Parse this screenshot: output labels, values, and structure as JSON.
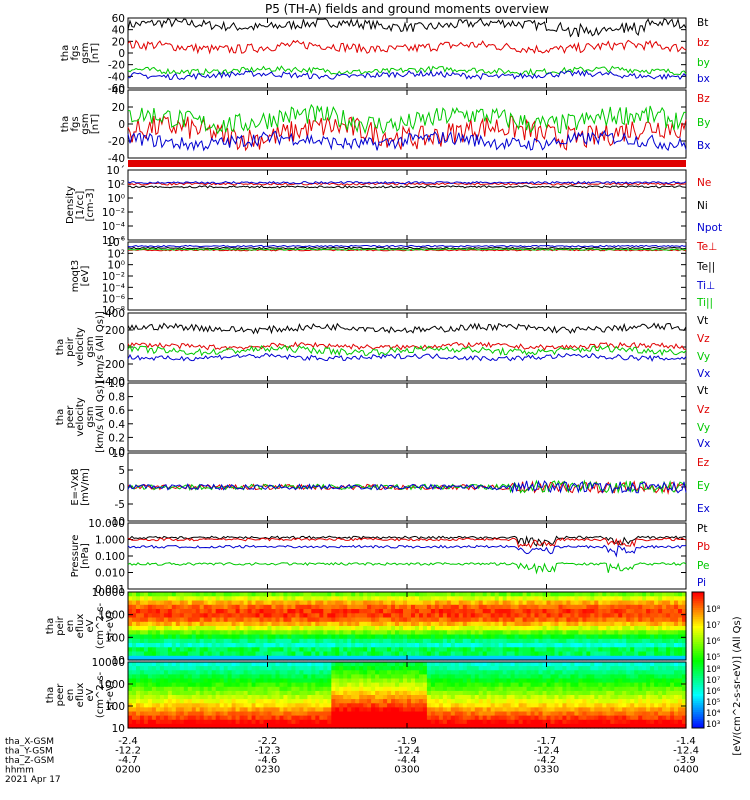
{
  "title": "P5 (TH-A) fields and ground moments overview",
  "chart_data": {
    "type": "line",
    "x_ticks": [
      "0200",
      "0230",
      "0300",
      "0330",
      "0400"
    ],
    "ephemeris": {
      "labels": [
        "tha_X-GSM",
        "tha_Y-GSM",
        "tha_Z-GSM",
        "hhmm",
        "2021 Apr 17"
      ],
      "rows": [
        [
          "-2.4",
          "-2.2",
          "-1.9",
          "-1.7",
          "-1.4"
        ],
        [
          "-12.2",
          "-12.3",
          "-12.4",
          "-12.4",
          "-12.4"
        ],
        [
          "-4.7",
          "-4.6",
          "-4.4",
          "-4.2",
          "-3.9"
        ]
      ]
    },
    "panels": [
      {
        "id": "fgs",
        "ylabel": [
          "tha",
          "fgs",
          "gsm",
          "[nT]"
        ],
        "yticks": [
          "60",
          "40",
          "20",
          "0",
          "-20",
          "-40",
          "-60"
        ],
        "series": [
          {
            "name": "Bt",
            "color": "#000000",
            "base": 48,
            "amp": 8
          },
          {
            "name": "bz",
            "color": "#e00000",
            "base": 10,
            "amp": 8
          },
          {
            "name": "by",
            "color": "#00c800",
            "base": -30,
            "amp": 5
          },
          {
            "name": "bx",
            "color": "#0000d0",
            "base": -38,
            "amp": 5
          }
        ]
      },
      {
        "id": "fgs2",
        "ylabel": [
          "tha",
          "fgs",
          "gsm",
          "[nT]"
        ],
        "yticks": [
          "40",
          "20",
          "0",
          "-20",
          "-40"
        ],
        "series": [
          {
            "name": "Bz",
            "color": "#e00000",
            "base": -10,
            "amp": 14
          },
          {
            "name": "By",
            "color": "#00c800",
            "base": 5,
            "amp": 12
          },
          {
            "name": "Bx",
            "color": "#0000d0",
            "base": -20,
            "amp": 8
          }
        ]
      },
      {
        "id": "density",
        "ylabel": [
          "Density",
          "[1/cc]",
          "[cm-3]"
        ],
        "yticks": [
          "10´",
          "10²",
          "10⁰",
          "10⁻²",
          "10⁻⁴",
          "10⁻⁶"
        ],
        "series": [
          {
            "name": "Ne",
            "color": "#e00000"
          },
          {
            "name": "Ni",
            "color": "#000000"
          },
          {
            "name": "Npot",
            "color": "#0000d0"
          }
        ]
      },
      {
        "id": "temp",
        "ylabel": [
          "moqt3",
          "[eV]"
        ],
        "yticks": [
          "10´",
          "10²",
          "10⁰",
          "10⁻²",
          "10⁻⁴",
          "10⁻⁶",
          "10⁻⁸"
        ],
        "series": [
          {
            "name": "Te⊥",
            "color": "#e00000"
          },
          {
            "name": "Te||",
            "color": "#000000"
          },
          {
            "name": "Ti⊥",
            "color": "#0000d0"
          },
          {
            "name": "Ti||",
            "color": "#00c800"
          }
        ]
      },
      {
        "id": "peir_vel",
        "ylabel": [
          "tha",
          "peir",
          "velocity",
          "gsm",
          "[km/s (All Qs)]"
        ],
        "yticks": [
          "400",
          "200",
          "0",
          "-200",
          "-400"
        ],
        "series": [
          {
            "name": "Vt",
            "color": "#000000",
            "base": 220,
            "amp": 40
          },
          {
            "name": "Vz",
            "color": "#e00000",
            "base": 10,
            "amp": 30
          },
          {
            "name": "Vy",
            "color": "#00c800",
            "base": -40,
            "amp": 40
          },
          {
            "name": "Vx",
            "color": "#0000d0",
            "base": -120,
            "amp": 30
          }
        ]
      },
      {
        "id": "peer_vel",
        "ylabel": [
          "tha",
          "peer",
          "velocity",
          "gsm",
          "[km/s (All Qs)]"
        ],
        "yticks": [
          "1.0",
          "0.8",
          "0.6",
          "0.4",
          "0.2",
          "0.0"
        ],
        "series": [
          {
            "name": "Vt",
            "color": "#000000"
          },
          {
            "name": "Vz",
            "color": "#e00000"
          },
          {
            "name": "Vy",
            "color": "#00c800"
          },
          {
            "name": "Vx",
            "color": "#0000d0"
          }
        ]
      },
      {
        "id": "efield",
        "ylabel": [
          "E=-VxB",
          "[mV/m]"
        ],
        "yticks": [
          "10",
          "5",
          "0",
          "-5",
          "-10"
        ],
        "series": [
          {
            "name": "Ez",
            "color": "#e00000"
          },
          {
            "name": "Ey",
            "color": "#00c800"
          },
          {
            "name": "Ex",
            "color": "#0000d0"
          }
        ]
      },
      {
        "id": "pressure",
        "ylabel": [
          "Pressure",
          "[nPa]"
        ],
        "yticks": [
          "10.000",
          "1.000",
          "0.100",
          "0.010",
          "0.001"
        ],
        "series": [
          {
            "name": "Pt",
            "color": "#000000"
          },
          {
            "name": "Pb",
            "color": "#e00000"
          },
          {
            "name": "Pe",
            "color": "#00c800"
          },
          {
            "name": "Pi",
            "color": "#0000d0"
          }
        ]
      },
      {
        "id": "peir_spec",
        "ylabel": [
          "tha",
          "peir",
          "en",
          "eflux",
          "eV",
          "(cm^2-s-",
          "sr-eV)"
        ],
        "yticks": [
          "10000",
          "1000",
          "100",
          "10"
        ]
      },
      {
        "id": "peer_spec",
        "ylabel": [
          "tha",
          "peer",
          "en",
          "eflux",
          "eV",
          "(cm^2-s-",
          "sr-eV)"
        ],
        "yticks": [
          "10000",
          "1000",
          "100",
          "10"
        ]
      }
    ],
    "colorbar": {
      "label": "[eV/(cm^2-s-sr-eV)] (All Qs)",
      "ticks_top": [
        "10⁸",
        "10⁷",
        "10⁶",
        "10⁵"
      ],
      "ticks_bottom": [
        "10⁸",
        "10⁷",
        "10⁶",
        "10⁵",
        "10⁴",
        "10³"
      ]
    }
  }
}
